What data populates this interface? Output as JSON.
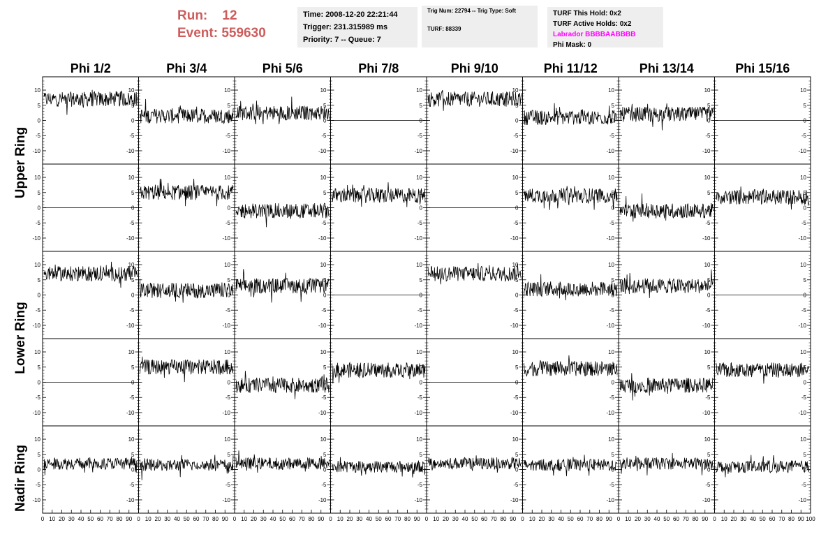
{
  "header": {
    "run_label": "Run:",
    "run_value": "12",
    "event_label": "Event:",
    "event_value": "559630"
  },
  "info_panel_1": {
    "time": "Time: 2008-12-20 22:21:44",
    "trigger": "Trigger: 231.315989 ms",
    "priority": "Priority: 7 -- Queue: 7"
  },
  "info_panel_2": {
    "trig": "Trig Num: 22794 -- Trig Type: Soft",
    "turf": "TURF: 88339"
  },
  "info_panel_3": {
    "this_hold": "TURF This Hold: 0x2",
    "active_holds": "TURF Active Holds: 0x2",
    "labrador": "Labrador BBBBAABBBB",
    "phi_mask": "Phi Mask: 0"
  },
  "columns": [
    "Phi 1/2",
    "Phi 3/4",
    "Phi 5/6",
    "Phi 7/8",
    "Phi 9/10",
    "Phi 11/12",
    "Phi 13/14",
    "Phi 15/16"
  ],
  "ring_labels": [
    "Upper Ring",
    "Lower Ring",
    "Nadir Ring"
  ],
  "colors": {
    "accent": "#cd5c5c",
    "magenta": "#ff00ff",
    "panel_bg": "#eeeeee"
  },
  "chart_data": {
    "type": "line",
    "ylim": [
      -13,
      13
    ],
    "xlim": [
      0,
      100
    ],
    "y_ticks": [
      "10",
      "5",
      "0",
      "-5",
      "-10"
    ],
    "x_ticks": [
      "0",
      "10",
      "20",
      "30",
      "40",
      "50",
      "60",
      "70",
      "80",
      "90",
      "100"
    ],
    "row_ring_rows": [
      "Upper Ring (top)",
      "Upper Ring (bottom)",
      "Lower Ring (top)",
      "Lower Ring (bottom)",
      "Nadir Ring"
    ],
    "baseline_levels": [
      [
        7,
        1.5,
        2.5,
        0,
        7,
        1,
        2,
        0
      ],
      [
        0,
        5,
        -1,
        4,
        0,
        4,
        -1,
        3.5
      ],
      [
        7,
        1.5,
        3,
        0,
        7,
        2,
        3,
        0
      ],
      [
        0,
        5,
        -1,
        4,
        0,
        4.5,
        -1,
        4
      ],
      [
        2,
        1.5,
        2,
        1,
        2,
        1.5,
        2,
        1
      ]
    ],
    "noise_amplitude": [
      [
        2.5,
        2.5,
        2.5,
        0,
        2.5,
        2.5,
        2.5,
        0
      ],
      [
        0,
        2.5,
        2.5,
        2.5,
        0,
        2.5,
        2.5,
        2.5
      ],
      [
        2.5,
        2.5,
        2.5,
        0,
        2.5,
        2.5,
        2.5,
        0
      ],
      [
        0,
        2.5,
        2.5,
        2.5,
        0,
        2.5,
        2.5,
        2.5
      ],
      [
        2,
        2,
        2,
        2,
        2,
        2,
        2,
        2
      ]
    ]
  }
}
